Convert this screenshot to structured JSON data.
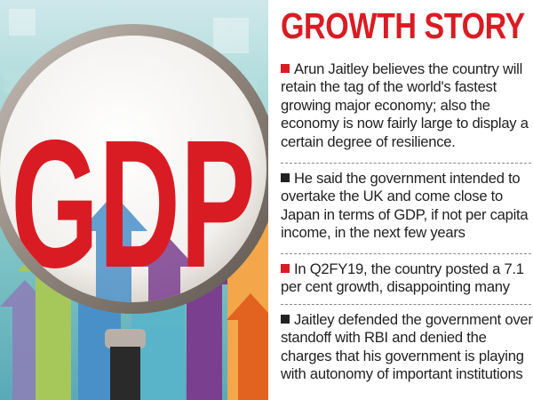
{
  "graphic": {
    "gdp_text": "GDP",
    "colors": {
      "background_teal": "#7fc9c4",
      "letters_red": "#d91c24",
      "lens_rim": "#9a8f86",
      "handle": "#2a2a2a",
      "arrow_blue": "#4a90c8",
      "arrow_orange": "#f3a64a",
      "arrow_purple": "#7b3f8f",
      "arrow_green": "#a6c85a"
    }
  },
  "headline": "GROWTH STORY",
  "bullet_color": "#d91c24",
  "bullets": [
    {
      "text": "Arun Jaitley believes the country will retain the tag of the world's fastest growing major economy; also the economy is now fairly large to display a certain degree of resilience.",
      "marker_color": "#d91c24"
    },
    {
      "text": "He said the government intended to overtake the UK and come close to Japan in terms of GDP, if not per capita income, in the next few years",
      "marker_color": "#222222"
    },
    {
      "text": "In Q2FY19, the country posted a 7.1 per cent growth, disappointing many",
      "marker_color": "#d91c24"
    },
    {
      "text": "Jaitley defended the government over standoff with RBI and denied the charges that his government is playing with autonomy of important institutions",
      "marker_color": "#222222"
    }
  ]
}
